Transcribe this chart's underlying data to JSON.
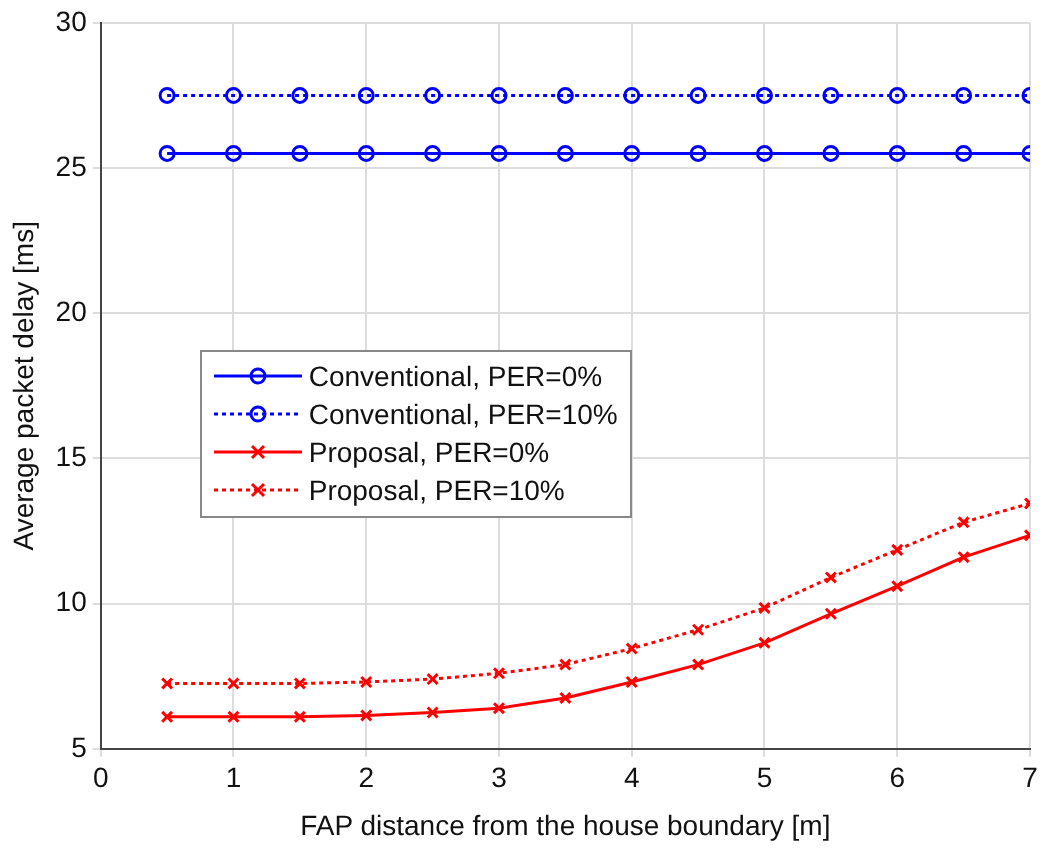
{
  "chart_data": {
    "type": "line",
    "xlabel": "FAP distance from the house boundary [m]",
    "ylabel": "Average packet delay [ms]",
    "x": [
      0.5,
      1,
      1.5,
      2,
      2.5,
      3,
      3.5,
      4,
      4.5,
      5,
      5.5,
      6,
      6.5,
      7
    ],
    "series": [
      {
        "name": "Conventional, PER=0%",
        "color": "#0000ff",
        "marker": "circle",
        "line_style": "solid",
        "values": [
          25.5,
          25.5,
          25.5,
          25.5,
          25.5,
          25.5,
          25.5,
          25.5,
          25.5,
          25.5,
          25.5,
          25.5,
          25.5,
          25.5
        ]
      },
      {
        "name": "Conventional, PER=10%",
        "color": "#0000ff",
        "marker": "circle",
        "line_style": "dotted",
        "values": [
          27.5,
          27.5,
          27.5,
          27.5,
          27.5,
          27.5,
          27.5,
          27.5,
          27.5,
          27.5,
          27.5,
          27.5,
          27.5,
          27.5
        ]
      },
      {
        "name": "Proposal, PER=0%",
        "color": "#ff0000",
        "marker": "cross",
        "line_style": "solid",
        "values": [
          6.1,
          6.1,
          6.1,
          6.15,
          6.25,
          6.4,
          6.75,
          7.3,
          7.9,
          8.65,
          9.65,
          10.6,
          11.6,
          12.35
        ]
      },
      {
        "name": "Proposal, PER=10%",
        "color": "#ff0000",
        "marker": "cross",
        "line_style": "dotted",
        "values": [
          7.25,
          7.25,
          7.25,
          7.3,
          7.4,
          7.6,
          7.9,
          8.45,
          9.1,
          9.85,
          10.9,
          11.85,
          12.8,
          13.45
        ]
      }
    ],
    "xlim": [
      0,
      7
    ],
    "xticks": [
      0,
      1,
      2,
      3,
      4,
      5,
      6,
      7
    ],
    "ylim": [
      5,
      30
    ],
    "yticks": [
      5,
      10,
      15,
      20,
      25,
      30
    ],
    "grid": true,
    "legend": "left"
  }
}
